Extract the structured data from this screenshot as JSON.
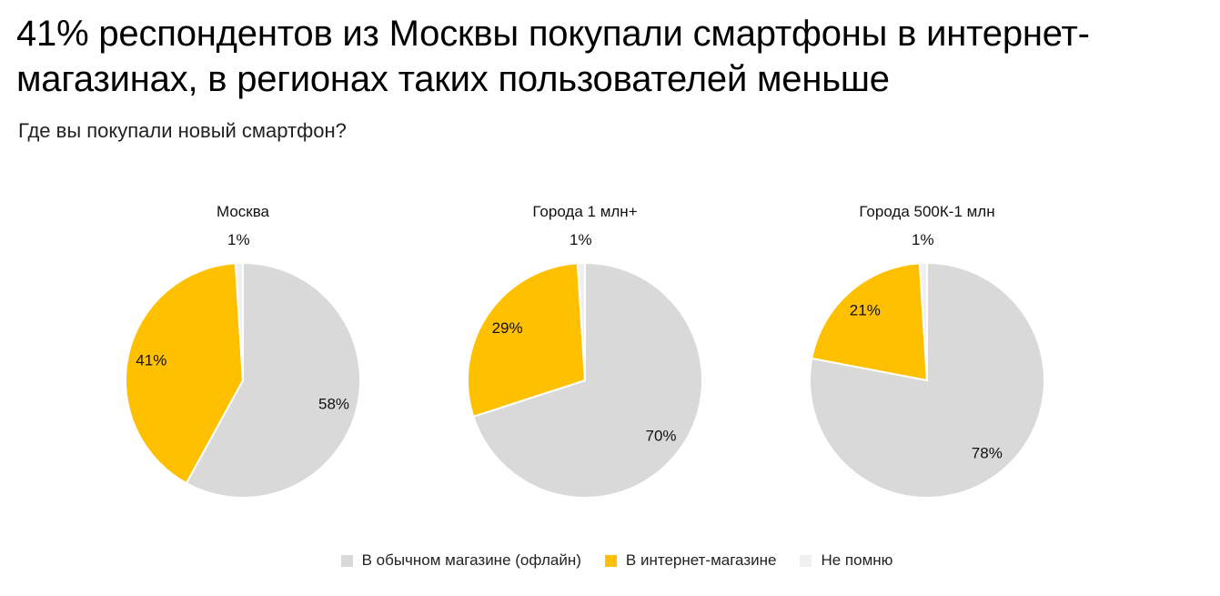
{
  "title": "41% респондентов из Москвы покупали смартфоны в интернет-магазинах, в регионах таких пользователей меньше",
  "subtitle": "Где вы покупали новый смартфон?",
  "colors": {
    "offline": "#d9d9d9",
    "online": "#ffc000",
    "dont_remember": "#f0f0f0"
  },
  "legend": [
    {
      "key": "offline",
      "label": "В обычном магазине (офлайн)"
    },
    {
      "key": "online",
      "label": "В интернет-магазине"
    },
    {
      "key": "dont_remember",
      "label": "Не помню"
    }
  ],
  "chart_data": [
    {
      "type": "pie",
      "title": "Москва",
      "slices": [
        {
          "key": "offline",
          "label": "В обычном магазине (офлайн)",
          "value": 58,
          "text": "58%"
        },
        {
          "key": "online",
          "label": "В интернет-магазине",
          "value": 41,
          "text": "41%"
        },
        {
          "key": "dont_remember",
          "label": "Не помню",
          "value": 1,
          "text": "1%"
        }
      ]
    },
    {
      "type": "pie",
      "title": "Города 1 млн+",
      "slices": [
        {
          "key": "offline",
          "label": "В обычном магазине (офлайн)",
          "value": 70,
          "text": "70%"
        },
        {
          "key": "online",
          "label": "В интернет-магазине",
          "value": 29,
          "text": "29%"
        },
        {
          "key": "dont_remember",
          "label": "Не помню",
          "value": 1,
          "text": "1%"
        }
      ]
    },
    {
      "type": "pie",
      "title": "Города 500К-1 млн",
      "slices": [
        {
          "key": "offline",
          "label": "В обычном магазине (офлайн)",
          "value": 78,
          "text": "78%"
        },
        {
          "key": "online",
          "label": "В интернет-магазине",
          "value": 21,
          "text": "21%"
        },
        {
          "key": "dont_remember",
          "label": "Не помню",
          "value": 1,
          "text": "1%"
        }
      ]
    }
  ]
}
